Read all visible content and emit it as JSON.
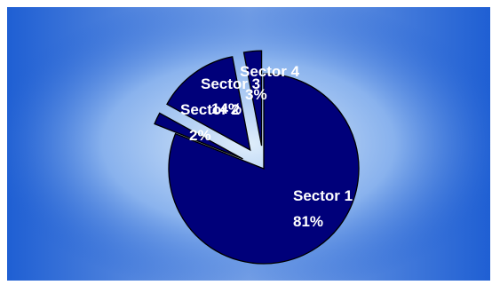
{
  "colors": {
    "frame_blue": "#1f5fd3",
    "glow": "#dfeefb",
    "slice_fill": "#00007a",
    "slice_stroke": "#000000"
  },
  "chart_data": {
    "type": "pie",
    "exploded": true,
    "slices": [
      {
        "name": "Sector 1",
        "percent_label": "81%",
        "value": 81
      },
      {
        "name": "Sector 2",
        "percent_label": "2%",
        "value": 2
      },
      {
        "name": "Sector 3",
        "percent_label": "14%",
        "value": 14
      },
      {
        "name": "Sector 4",
        "percent_label": "3%",
        "value": 3
      }
    ],
    "title": "",
    "legend": "none"
  }
}
